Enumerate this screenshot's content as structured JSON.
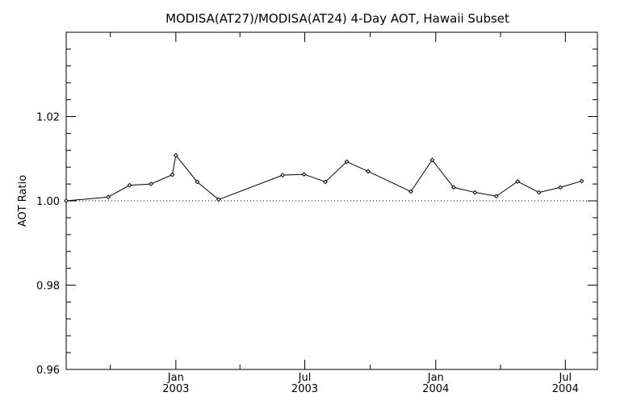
{
  "chart_data": {
    "type": "line",
    "title": "MODISA(AT27)/MODISA(AT24) 4-Day AOT, Hawaii Subset",
    "ylabel": "AOT Ratio",
    "xlabel": "",
    "ylim": [
      0.96,
      1.04
    ],
    "yticks": [
      {
        "value": 0.96,
        "label": "0.96"
      },
      {
        "value": 0.98,
        "label": "0.98"
      },
      {
        "value": 1.0,
        "label": "1.00"
      },
      {
        "value": 1.02,
        "label": "1.02"
      }
    ],
    "xlim": [
      "2002-07-31",
      "2004-08-15"
    ],
    "xticks": [
      {
        "date": "2003-01-01",
        "line1": "Jan",
        "line2": "2003"
      },
      {
        "date": "2003-07-01",
        "line1": "Jul",
        "line2": "2003"
      },
      {
        "date": "2004-01-01",
        "line1": "Jan",
        "line2": "2004"
      },
      {
        "date": "2004-07-01",
        "line1": "Jul",
        "line2": "2004"
      }
    ],
    "minor_xticks": [
      "2002-10-01",
      "2003-04-01",
      "2003-10-01",
      "2004-04-01"
    ],
    "reference_line": {
      "value": 1.0,
      "style": "dotted"
    },
    "series": [
      {
        "color": "#000000",
        "marker": "diamond",
        "points": [
          {
            "x": "2002-07-31",
            "y": 1.0
          },
          {
            "x": "2002-09-28",
            "y": 1.0009
          },
          {
            "x": "2002-10-28",
            "y": 1.0037
          },
          {
            "x": "2002-11-27",
            "y": 1.004
          },
          {
            "x": "2002-12-27",
            "y": 1.0062
          },
          {
            "x": "2003-01-01",
            "y": 1.0108
          },
          {
            "x": "2003-01-31",
            "y": 1.0045
          },
          {
            "x": "2003-03-02",
            "y": 1.0003
          },
          {
            "x": "2003-05-31",
            "y": 1.0061
          },
          {
            "x": "2003-06-30",
            "y": 1.0063
          },
          {
            "x": "2003-07-30",
            "y": 1.0045
          },
          {
            "x": "2003-08-29",
            "y": 1.0093
          },
          {
            "x": "2003-09-28",
            "y": 1.007
          },
          {
            "x": "2003-11-27",
            "y": 1.0022
          },
          {
            "x": "2003-12-27",
            "y": 1.0097
          },
          {
            "x": "2004-01-26",
            "y": 1.0032
          },
          {
            "x": "2004-02-25",
            "y": 1.002
          },
          {
            "x": "2004-03-26",
            "y": 1.0011
          },
          {
            "x": "2004-04-25",
            "y": 1.0046
          },
          {
            "x": "2004-05-25",
            "y": 1.002
          },
          {
            "x": "2004-06-24",
            "y": 1.0032
          },
          {
            "x": "2004-07-24",
            "y": 1.0047
          }
        ]
      }
    ],
    "grid": false,
    "legend": "none"
  }
}
